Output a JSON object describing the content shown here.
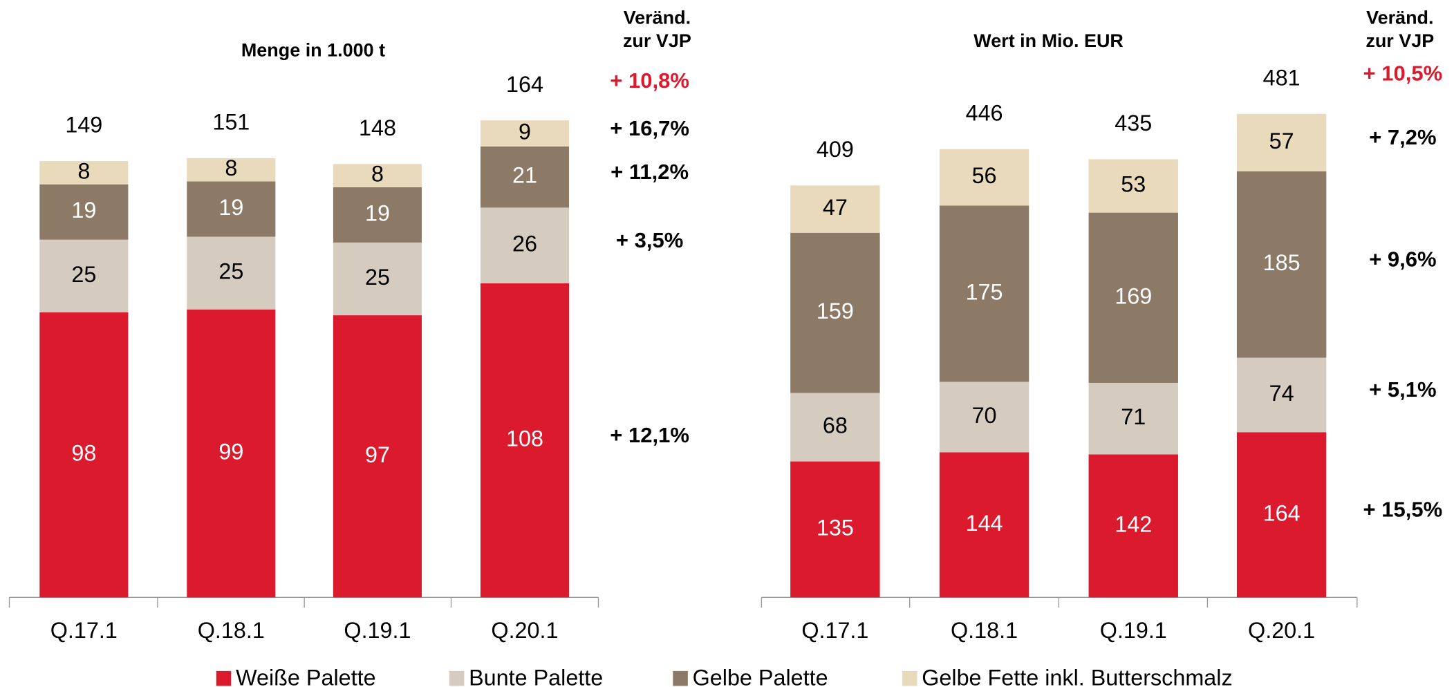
{
  "chart_data": [
    {
      "type": "stacked-bar",
      "title": "Menge in 1.000 t",
      "change_header": [
        "Veränd.",
        "zur VJP"
      ],
      "categories": [
        "Q.17.1",
        "Q.18.1",
        "Q.19.1",
        "Q.20.1"
      ],
      "totals": [
        149,
        151,
        148,
        164
      ],
      "total_change": "+ 10,8%",
      "total_change_color": "#dc1a2e",
      "series": [
        {
          "name": "Weiße Palette",
          "color": "#dc1a2e",
          "values": [
            98,
            99,
            97,
            108
          ],
          "change": "+ 12,1%"
        },
        {
          "name": "Bunte Palette",
          "color": "#d5cbbf",
          "values": [
            25,
            25,
            25,
            26
          ],
          "change": "+ 3,5%"
        },
        {
          "name": "Gelbe Palette",
          "color": "#8d7a66",
          "values": [
            19,
            19,
            19,
            21
          ],
          "change": "+ 11,2%"
        },
        {
          "name": "Gelbe Fette inkl. Butterschmalz",
          "color": "#e9dabb",
          "values": [
            8,
            8,
            8,
            9
          ],
          "change": "+ 16,7%"
        }
      ]
    },
    {
      "type": "stacked-bar",
      "title": "Wert in Mio. EUR",
      "change_header": [
        "Veränd.",
        "zur VJP"
      ],
      "categories": [
        "Q.17.1",
        "Q.18.1",
        "Q.19.1",
        "Q.20.1"
      ],
      "totals": [
        409,
        446,
        435,
        481
      ],
      "total_change": "+ 10,5%",
      "total_change_color": "#dc1a2e",
      "series": [
        {
          "name": "Weiße Palette",
          "color": "#dc1a2e",
          "values": [
            135,
            144,
            142,
            164
          ],
          "change": "+ 15,5%"
        },
        {
          "name": "Bunte Palette",
          "color": "#d5cbbf",
          "values": [
            68,
            70,
            71,
            74
          ],
          "change": "+ 5,1%"
        },
        {
          "name": "Gelbe Palette",
          "color": "#8d7a66",
          "values": [
            159,
            175,
            169,
            185
          ],
          "change": "+ 9,6%"
        },
        {
          "name": "Gelbe Fette inkl. Butterschmalz",
          "color": "#e9dabb",
          "values": [
            47,
            56,
            53,
            57
          ],
          "change": "+ 7,2%"
        }
      ]
    }
  ]
}
